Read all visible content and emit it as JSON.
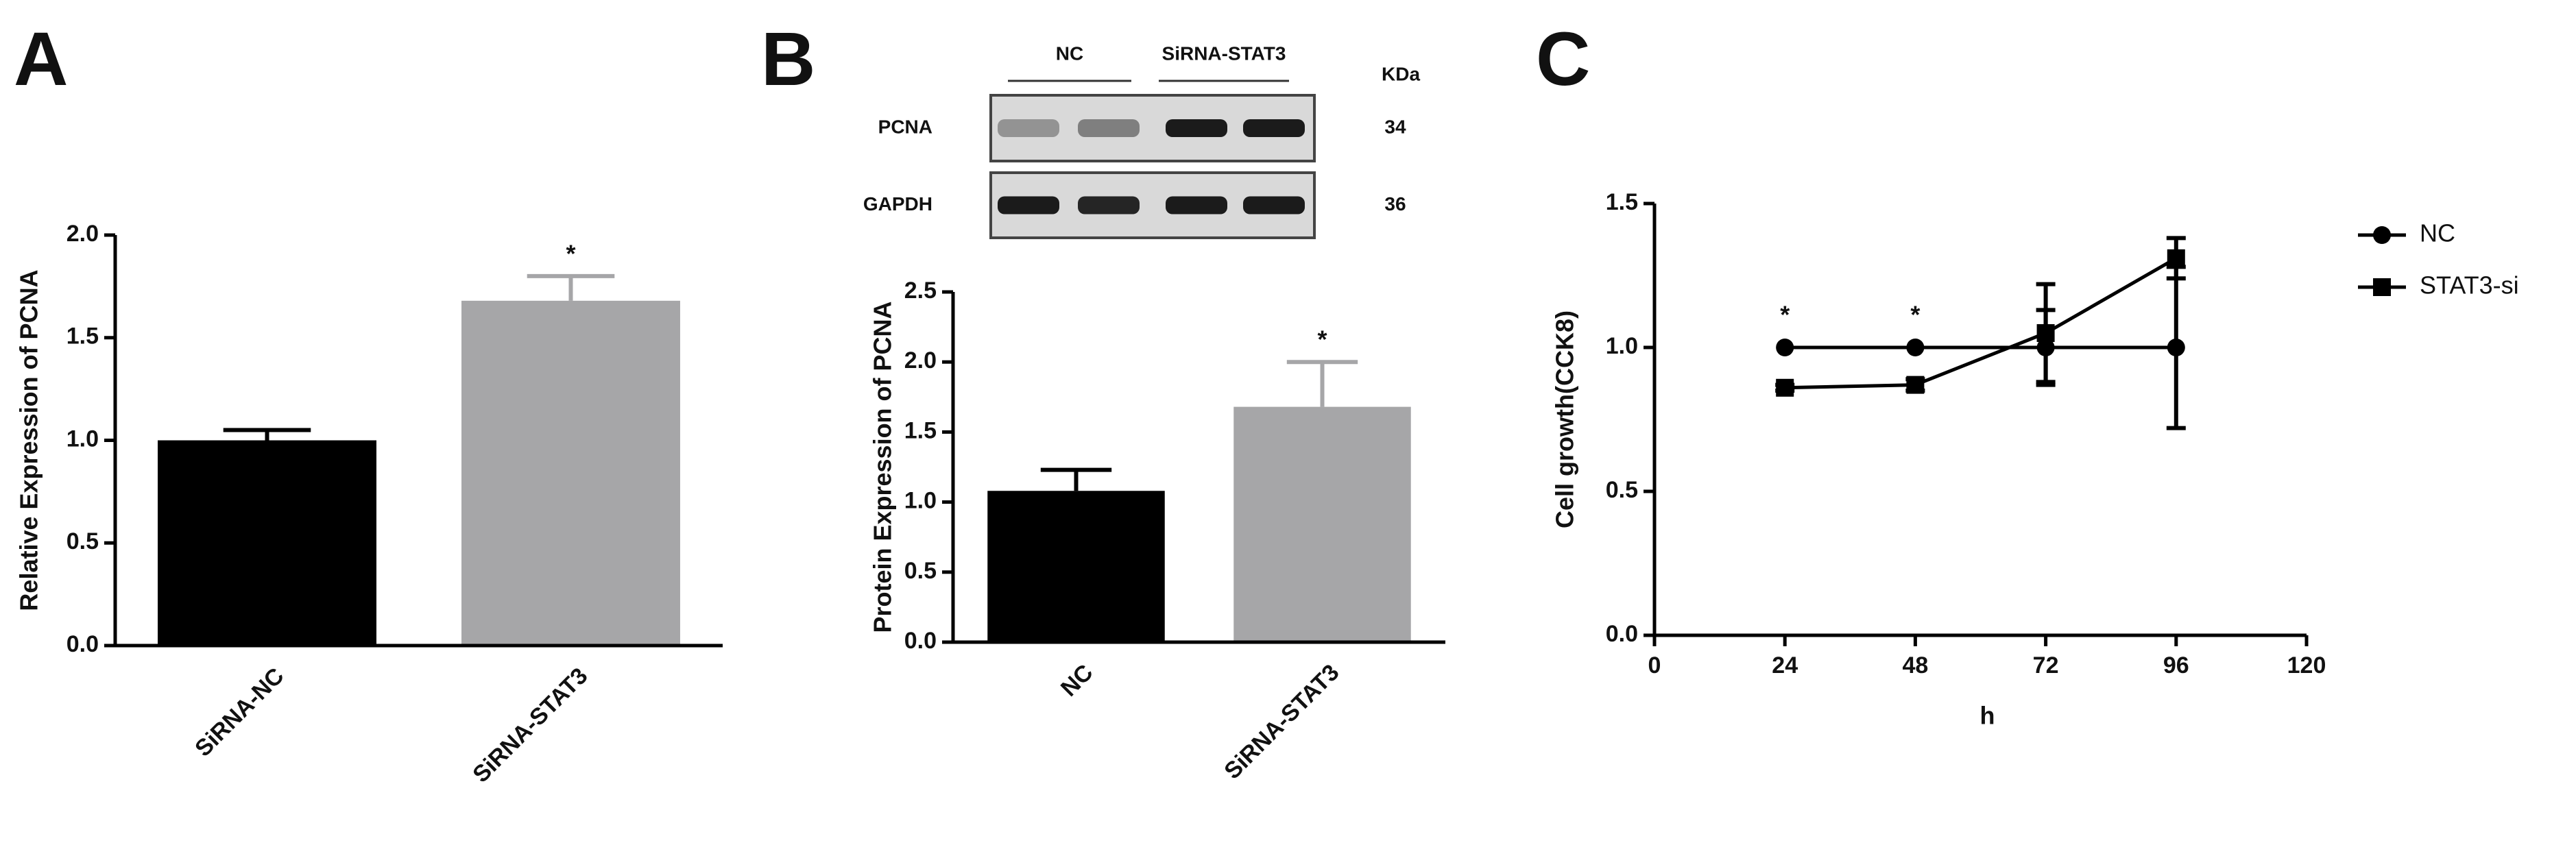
{
  "chart_data": [
    {
      "type": "bar",
      "panel": "A",
      "ylabel": "Relative Expression of PCNA",
      "categories": [
        "SiRNA-NC",
        "SiRNA-STAT3"
      ],
      "values": [
        1.0,
        1.68
      ],
      "errors": [
        0.05,
        0.12
      ],
      "colors": [
        "#000000",
        "#a6a6a8"
      ],
      "significance": [
        null,
        "*"
      ],
      "ylim": [
        0,
        2.0
      ],
      "yticks": [
        {
          "value": 0,
          "label": "0.0"
        },
        {
          "value": 0.5,
          "label": "0.5"
        },
        {
          "value": 1,
          "label": "1.0"
        },
        {
          "value": 1.5,
          "label": "1.5"
        },
        {
          "value": 2,
          "label": "2.0"
        }
      ]
    },
    {
      "type": "bar",
      "panel": "B",
      "ylabel": "Protein Expression of PCNA",
      "blot": {
        "groups": [
          "NC",
          "SiRNA-STAT3"
        ],
        "unit": "KDa",
        "rows": [
          {
            "name": "PCNA",
            "kda": 34
          },
          {
            "name": "GAPDH",
            "kda": 36
          }
        ]
      },
      "categories": [
        "NC",
        "SiRNA-STAT3"
      ],
      "values": [
        1.08,
        1.68
      ],
      "errors": [
        0.15,
        0.32
      ],
      "colors": [
        "#000000",
        "#a6a6a8"
      ],
      "significance": [
        null,
        "*"
      ],
      "ylim": [
        0,
        2.5
      ],
      "yticks": [
        {
          "value": 0,
          "label": "0.0"
        },
        {
          "value": 0.5,
          "label": "0.5"
        },
        {
          "value": 1,
          "label": "1.0"
        },
        {
          "value": 1.5,
          "label": "1.5"
        },
        {
          "value": 2,
          "label": "2.0"
        },
        {
          "value": 2.5,
          "label": "2.5"
        }
      ]
    },
    {
      "type": "line",
      "panel": "C",
      "ylabel": "Cell growth(CCK8)",
      "xlabel": "h",
      "x": [
        24,
        48,
        72,
        96
      ],
      "series": [
        {
          "name": "NC",
          "color": "#000000",
          "marker": "circle",
          "values": [
            1.0,
            1.0,
            1.0,
            1.0
          ],
          "errors": [
            0,
            0,
            0.13,
            0.28
          ]
        },
        {
          "name": "STAT3-si",
          "color": "#000000",
          "marker": "square",
          "values": [
            0.86,
            0.87,
            1.05,
            1.31
          ],
          "errors": [
            0.01,
            0.02,
            0.17,
            0.07
          ]
        }
      ],
      "significance": [
        "*",
        "*",
        null,
        null
      ],
      "xlim": [
        0,
        120
      ],
      "xticks": [
        0,
        24,
        48,
        72,
        96,
        120
      ],
      "ylim": [
        0,
        1.5
      ],
      "yticks": [
        {
          "value": 0,
          "label": "0.0"
        },
        {
          "value": 0.5,
          "label": "0.5"
        },
        {
          "value": 1,
          "label": "1.0"
        },
        {
          "value": 1.5,
          "label": "1.5"
        }
      ],
      "legend": "right"
    }
  ]
}
